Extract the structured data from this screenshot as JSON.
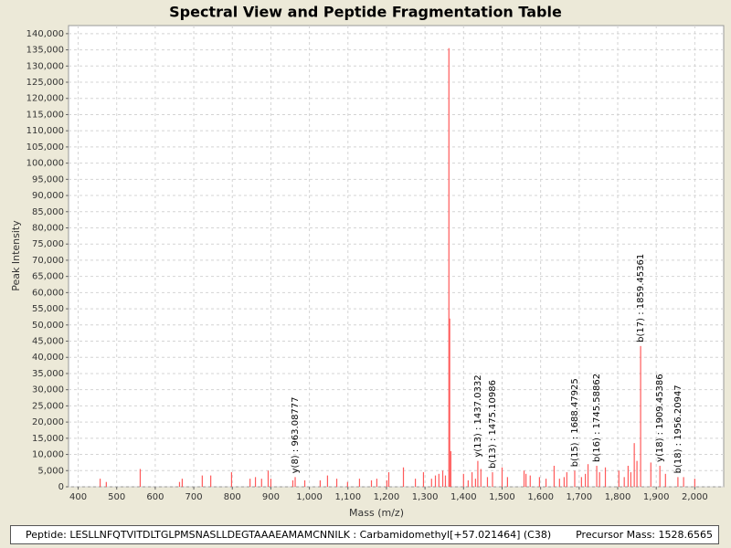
{
  "chart_data": {
    "type": "stem",
    "title": "Spectral View and Peptide Fragmentation Table",
    "x_label": "Mass (m/z)",
    "y_label": "Peak Intensity",
    "color": "#ff5a5a",
    "grid": true,
    "xlim": [
      375,
      2075
    ],
    "ylim": [
      0,
      142500
    ],
    "xticks": [
      400,
      500,
      600,
      700,
      800,
      900,
      {
        "value": 1000,
        "label": "1,000"
      },
      {
        "value": 1100,
        "label": "1,100"
      },
      {
        "value": 1200,
        "label": "1,200"
      },
      {
        "value": 1300,
        "label": "1,300"
      },
      {
        "value": 1400,
        "label": "1,400"
      },
      {
        "value": 1500,
        "label": "1,500"
      },
      {
        "value": 1600,
        "label": "1,600"
      },
      {
        "value": 1700,
        "label": "1,700"
      },
      {
        "value": 1800,
        "label": "1,800"
      },
      {
        "value": 1900,
        "label": "1,900"
      },
      {
        "value": 2000,
        "label": "2,000"
      }
    ],
    "yticks": [
      0,
      {
        "value": 5000,
        "label": "5,000"
      },
      {
        "value": 10000,
        "label": "10,000"
      },
      {
        "value": 15000,
        "label": "15,000"
      },
      {
        "value": 20000,
        "label": "20,000"
      },
      {
        "value": 25000,
        "label": "25,000"
      },
      {
        "value": 30000,
        "label": "30,000"
      },
      {
        "value": 35000,
        "label": "35,000"
      },
      {
        "value": 40000,
        "label": "40,000"
      },
      {
        "value": 45000,
        "label": "45,000"
      },
      {
        "value": 50000,
        "label": "50,000"
      },
      {
        "value": 55000,
        "label": "55,000"
      },
      {
        "value": 60000,
        "label": "60,000"
      },
      {
        "value": 65000,
        "label": "65,000"
      },
      {
        "value": 70000,
        "label": "70,000"
      },
      {
        "value": 75000,
        "label": "75,000"
      },
      {
        "value": 80000,
        "label": "80,000"
      },
      {
        "value": 85000,
        "label": "85,000"
      },
      {
        "value": 90000,
        "label": "90,000"
      },
      {
        "value": 95000,
        "label": "95,000"
      },
      {
        "value": 100000,
        "label": "100,000"
      },
      {
        "value": 105000,
        "label": "105,000"
      },
      {
        "value": 110000,
        "label": "110,000"
      },
      {
        "value": 115000,
        "label": "115,000"
      },
      {
        "value": 120000,
        "label": "120,000"
      },
      {
        "value": 125000,
        "label": "125,000"
      },
      {
        "value": 130000,
        "label": "130,000"
      },
      {
        "value": 135000,
        "label": "135,000"
      },
      {
        "value": 140000,
        "label": "140,000"
      }
    ],
    "x": [
      457,
      473,
      561,
      663,
      670,
      722,
      744,
      798,
      846,
      860,
      876,
      893,
      900,
      957,
      963.08777,
      988,
      1028,
      1047,
      1071,
      1099,
      1130,
      1161,
      1175,
      1201,
      1206,
      1244,
      1275,
      1296,
      1317,
      1327,
      1336,
      1346,
      1353,
      1362,
      1364,
      1367,
      1400,
      1412,
      1422,
      1431,
      1437.0332,
      1445,
      1462,
      1475.10986,
      1500,
      1514,
      1557,
      1562,
      1573,
      1597,
      1614,
      1635,
      1649,
      1661,
      1668,
      1688.47925,
      1706,
      1716,
      1723,
      1745.58862,
      1753,
      1768,
      1803,
      1817,
      1827,
      1834,
      1843,
      1850,
      1859.45361,
      1886,
      1909.45386,
      1924,
      1956.20947,
      1971,
      2000
    ],
    "values": [
      2500,
      1500,
      5500,
      1500,
      2500,
      3500,
      3500,
      4500,
      2500,
      3000,
      2500,
      5000,
      2500,
      2000,
      3000,
      2000,
      2000,
      3500,
      2500,
      1500,
      2500,
      2000,
      2500,
      2000,
      4500,
      6000,
      2500,
      4500,
      2500,
      3500,
      4000,
      5000,
      3500,
      135500,
      52000,
      11000,
      4000,
      2000,
      4500,
      2500,
      8000,
      5500,
      3000,
      4500,
      6000,
      3000,
      5000,
      4000,
      3500,
      3000,
      2500,
      6500,
      2500,
      3000,
      4500,
      5000,
      3000,
      4000,
      7000,
      6500,
      4500,
      6000,
      5000,
      3000,
      6500,
      4500,
      13500,
      8000,
      43500,
      7500,
      6500,
      4000,
      3000,
      3000,
      2500
    ],
    "annotations": [
      {
        "label": "y(8) : 963.08777",
        "x": 963.08777
      },
      {
        "label": "y(13) : 1437.0332",
        "x": 1437.0332
      },
      {
        "label": "b(13) : 1475.10986",
        "x": 1475.10986
      },
      {
        "label": "b(15) : 1688.47925",
        "x": 1688.47925
      },
      {
        "label": "b(16) : 1745.58862",
        "x": 1745.58862
      },
      {
        "label": "b(17) : 1859.45361",
        "x": 1859.45361
      },
      {
        "label": "y(18) : 1909.45386",
        "x": 1909.45386
      },
      {
        "label": "b(18) : 1956.20947",
        "x": 1956.20947
      }
    ]
  },
  "footer": {
    "peptide": "Peptide: LESLLNFQTVITDLTGLPMSNASLLDEGTAAAEAMAMCNNILK : Carbamidomethyl[+57.021464] (C38)",
    "precursor": "Precursor Mass: 1528.6565"
  }
}
